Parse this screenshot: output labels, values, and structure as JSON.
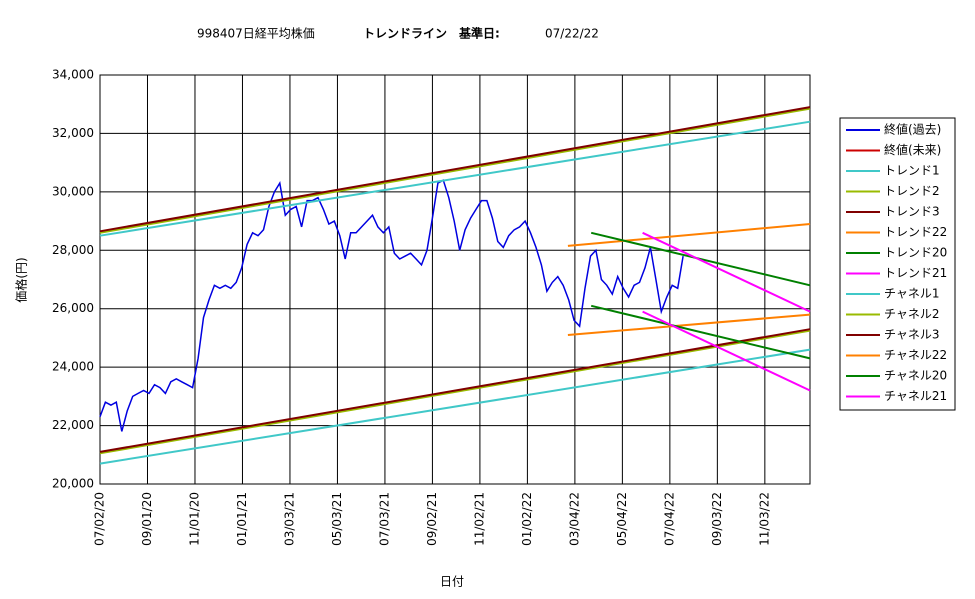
{
  "chart_data": {
    "type": "line",
    "title": "998407日経平均株価",
    "subtitle": "トレンドライン　基準日:",
    "base_date": "07/22/22",
    "y_label": "価格(円)",
    "x_label": "日付",
    "xlim": [
      "2020-07-02",
      "2022-12-31"
    ],
    "xticks": [
      {
        "value": "2020-07-02",
        "label": "07/02/20"
      },
      {
        "value": "2020-09-01",
        "label": "09/01/20"
      },
      {
        "value": "2020-11-01",
        "label": "11/01/20"
      },
      {
        "value": "2021-01-01",
        "label": "01/01/21"
      },
      {
        "value": "2021-03-03",
        "label": "03/03/21"
      },
      {
        "value": "2021-05-03",
        "label": "05/03/21"
      },
      {
        "value": "2021-07-03",
        "label": "07/03/21"
      },
      {
        "value": "2021-09-02",
        "label": "09/02/21"
      },
      {
        "value": "2021-11-02",
        "label": "11/02/21"
      },
      {
        "value": "2022-01-02",
        "label": "01/02/22"
      },
      {
        "value": "2022-03-04",
        "label": "03/04/22"
      },
      {
        "value": "2022-05-04",
        "label": "05/04/22"
      },
      {
        "value": "2022-07-04",
        "label": "07/04/22"
      },
      {
        "value": "2022-09-03",
        "label": "09/03/22"
      },
      {
        "value": "2022-11-03",
        "label": "11/03/22"
      }
    ],
    "ylim": [
      20000,
      34000
    ],
    "yticks": [
      {
        "value": 20000,
        "label": "20,000"
      },
      {
        "value": 22000,
        "label": "22,000"
      },
      {
        "value": 24000,
        "label": "24,000"
      },
      {
        "value": 26000,
        "label": "26,000"
      },
      {
        "value": 28000,
        "label": "28,000"
      },
      {
        "value": 30000,
        "label": "30,000"
      },
      {
        "value": 32000,
        "label": "32,000"
      },
      {
        "value": 34000,
        "label": "34,000"
      }
    ],
    "grid": true,
    "legend": "right",
    "series": [
      {
        "name": "終値(過去)",
        "color": "#0000e0",
        "x": [
          "2020-07-02",
          "2020-07-09",
          "2020-07-16",
          "2020-07-23",
          "2020-07-30",
          "2020-08-06",
          "2020-08-13",
          "2020-08-20",
          "2020-08-27",
          "2020-09-03",
          "2020-09-10",
          "2020-09-17",
          "2020-09-24",
          "2020-10-01",
          "2020-10-08",
          "2020-10-15",
          "2020-10-22",
          "2020-10-29",
          "2020-11-05",
          "2020-11-12",
          "2020-11-19",
          "2020-11-26",
          "2020-12-03",
          "2020-12-10",
          "2020-12-17",
          "2020-12-24",
          "2020-12-31",
          "2021-01-07",
          "2021-01-14",
          "2021-01-21",
          "2021-01-28",
          "2021-02-04",
          "2021-02-11",
          "2021-02-18",
          "2021-02-25",
          "2021-03-04",
          "2021-03-11",
          "2021-03-18",
          "2021-03-25",
          "2021-04-01",
          "2021-04-08",
          "2021-04-15",
          "2021-04-22",
          "2021-04-29",
          "2021-05-06",
          "2021-05-13",
          "2021-05-20",
          "2021-05-27",
          "2021-06-03",
          "2021-06-10",
          "2021-06-17",
          "2021-06-24",
          "2021-07-01",
          "2021-07-08",
          "2021-07-15",
          "2021-07-22",
          "2021-07-29",
          "2021-08-05",
          "2021-08-12",
          "2021-08-19",
          "2021-08-26",
          "2021-09-02",
          "2021-09-09",
          "2021-09-16",
          "2021-09-23",
          "2021-09-30",
          "2021-10-07",
          "2021-10-14",
          "2021-10-21",
          "2021-10-28",
          "2021-11-04",
          "2021-11-11",
          "2021-11-18",
          "2021-11-25",
          "2021-12-02",
          "2021-12-09",
          "2021-12-16",
          "2021-12-23",
          "2021-12-30",
          "2022-01-06",
          "2022-01-13",
          "2022-01-20",
          "2022-01-27",
          "2022-02-03",
          "2022-02-10",
          "2022-02-17",
          "2022-02-24",
          "2022-03-03",
          "2022-03-10",
          "2022-03-17",
          "2022-03-24",
          "2022-03-31",
          "2022-04-07",
          "2022-04-14",
          "2022-04-21",
          "2022-04-28",
          "2022-05-05",
          "2022-05-12",
          "2022-05-19",
          "2022-05-26",
          "2022-06-02",
          "2022-06-09",
          "2022-06-16",
          "2022-06-23",
          "2022-06-30",
          "2022-07-07",
          "2022-07-14",
          "2022-07-21"
        ],
        "values": [
          22300,
          22800,
          22700,
          22800,
          21800,
          22500,
          23000,
          23100,
          23200,
          23100,
          23400,
          23300,
          23100,
          23500,
          23600,
          23500,
          23400,
          23300,
          24300,
          25700,
          26300,
          26800,
          26700,
          26800,
          26700,
          26900,
          27400,
          28200,
          28600,
          28500,
          28700,
          29500,
          30000,
          30300,
          29200,
          29400,
          29500,
          28800,
          29700,
          29700,
          29800,
          29400,
          28900,
          29000,
          28500,
          27700,
          28600,
          28600,
          28800,
          29000,
          29200,
          28800,
          28600,
          28800,
          27900,
          27700,
          27800,
          27900,
          27700,
          27500,
          28000,
          29100,
          30300,
          30400,
          29800,
          29000,
          28000,
          28700,
          29100,
          29400,
          29700,
          29700,
          29100,
          28300,
          28100,
          28500,
          28700,
          28800,
          29000,
          28600,
          28100,
          27500,
          26600,
          26900,
          27100,
          26800,
          26300,
          25600,
          25400,
          26700,
          27800,
          28000,
          27000,
          26800,
          26500,
          27100,
          26700,
          26400,
          26800,
          26900,
          27400,
          28100,
          27000,
          25900,
          26400,
          26800,
          26700,
          27800
        ]
      },
      {
        "name": "終値(未来)",
        "color": "#cc0000",
        "x": [],
        "values": []
      },
      {
        "name": "トレンド1",
        "color": "#40c8c8",
        "x": [
          "2020-07-02",
          "2022-12-31"
        ],
        "values": [
          28500,
          32400
        ]
      },
      {
        "name": "トレンド2",
        "color": "#99bb00",
        "x": [
          "2020-07-02",
          "2022-12-31"
        ],
        "values": [
          28600,
          32850
        ]
      },
      {
        "name": "トレンド3",
        "color": "#800000",
        "x": [
          "2020-07-02",
          "2022-12-31"
        ],
        "values": [
          28650,
          32900
        ]
      },
      {
        "name": "トレンド22",
        "color": "#ff8000",
        "x": [
          "2022-02-23",
          "2022-12-31"
        ],
        "values": [
          28150,
          28900
        ]
      },
      {
        "name": "トレンド20",
        "color": "#008000",
        "x": [
          "2022-03-25",
          "2022-12-31"
        ],
        "values": [
          28600,
          26800
        ]
      },
      {
        "name": "トレンド21",
        "color": "#ff00ff",
        "x": [
          "2022-05-30",
          "2022-12-31"
        ],
        "values": [
          28600,
          25900
        ]
      },
      {
        "name": "チャネル1",
        "color": "#40c8c8",
        "x": [
          "2020-07-02",
          "2022-12-31"
        ],
        "values": [
          20700,
          24600
        ]
      },
      {
        "name": "チャネル2",
        "color": "#99bb00",
        "x": [
          "2020-07-02",
          "2022-12-31"
        ],
        "values": [
          21050,
          25250
        ]
      },
      {
        "name": "チャネル3",
        "color": "#800000",
        "x": [
          "2020-07-02",
          "2022-12-31"
        ],
        "values": [
          21100,
          25300
        ]
      },
      {
        "name": "チャネル22",
        "color": "#ff8000",
        "x": [
          "2022-02-23",
          "2022-12-31"
        ],
        "values": [
          25100,
          25800
        ]
      },
      {
        "name": "チャネル20",
        "color": "#008000",
        "x": [
          "2022-03-25",
          "2022-12-31"
        ],
        "values": [
          26100,
          24300
        ]
      },
      {
        "name": "チャネル21",
        "color": "#ff00ff",
        "x": [
          "2022-05-30",
          "2022-12-31"
        ],
        "values": [
          25900,
          23200
        ]
      }
    ]
  }
}
